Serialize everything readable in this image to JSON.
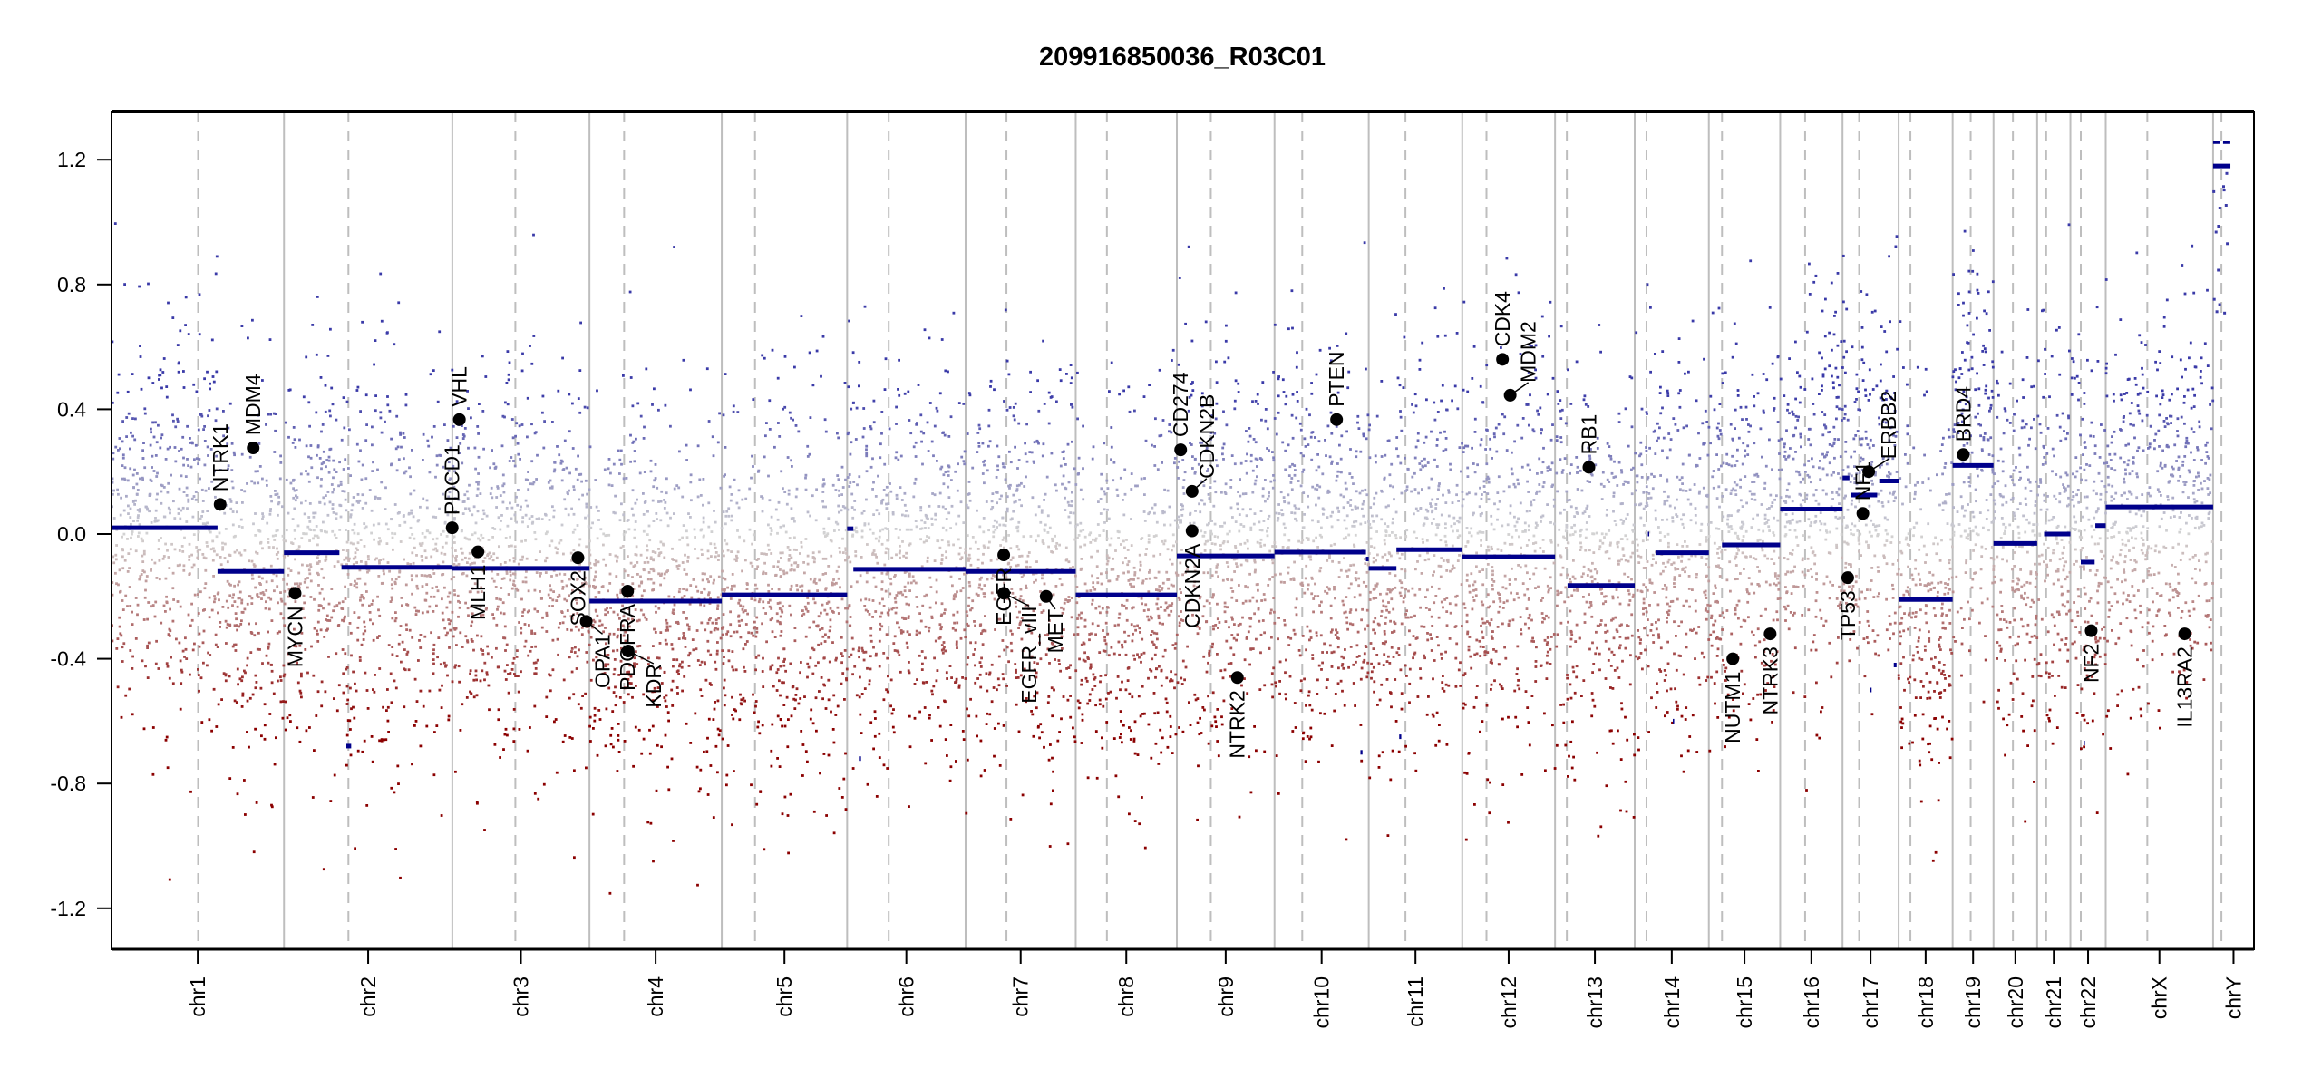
{
  "chart_data": {
    "type": "scatter",
    "title": "209916850036_R03C01",
    "xlabel": "",
    "ylabel": "",
    "ylim": [
      -1.34,
      1.355
    ],
    "yticks": [
      -1.2,
      -0.8,
      -0.4,
      0.0,
      0.4,
      0.8,
      1.2
    ],
    "ytick_labels": [
      "-1.2",
      "-0.8",
      "-0.4",
      "0.0",
      "0.4",
      "0.8",
      "1.2"
    ],
    "grid": false,
    "colors": {
      "gain": "#00008b",
      "loss": "#8b0000",
      "neutral": "#d3d3d3",
      "segment": "#00008b",
      "gene": "#000000",
      "chrom_line": "#bebebe"
    },
    "chromosomes": [
      {
        "name": "chr1",
        "length_mb": 249,
        "centromere_mb": 125
      },
      {
        "name": "chr2",
        "length_mb": 243,
        "centromere_mb": 93
      },
      {
        "name": "chr3",
        "length_mb": 198,
        "centromere_mb": 91
      },
      {
        "name": "chr4",
        "length_mb": 191,
        "centromere_mb": 50
      },
      {
        "name": "chr5",
        "length_mb": 181,
        "centromere_mb": 48
      },
      {
        "name": "chr6",
        "length_mb": 171,
        "centromere_mb": 60
      },
      {
        "name": "chr7",
        "length_mb": 159,
        "centromere_mb": 59
      },
      {
        "name": "chr8",
        "length_mb": 146,
        "centromere_mb": 45
      },
      {
        "name": "chr9",
        "length_mb": 141,
        "centromere_mb": 49
      },
      {
        "name": "chr10",
        "length_mb": 136,
        "centromere_mb": 40
      },
      {
        "name": "chr11",
        "length_mb": 135,
        "centromere_mb": 53
      },
      {
        "name": "chr12",
        "length_mb": 134,
        "centromere_mb": 35
      },
      {
        "name": "chr13",
        "length_mb": 115,
        "centromere_mb": 17
      },
      {
        "name": "chr14",
        "length_mb": 107,
        "centromere_mb": 17
      },
      {
        "name": "chr15",
        "length_mb": 103,
        "centromere_mb": 19
      },
      {
        "name": "chr16",
        "length_mb": 90,
        "centromere_mb": 36
      },
      {
        "name": "chr17",
        "length_mb": 81,
        "centromere_mb": 24
      },
      {
        "name": "chr18",
        "length_mb": 78,
        "centromere_mb": 17
      },
      {
        "name": "chr19",
        "length_mb": 59,
        "centromere_mb": 26
      },
      {
        "name": "chr20",
        "length_mb": 63,
        "centromere_mb": 28
      },
      {
        "name": "chr21",
        "length_mb": 48,
        "centromere_mb": 13
      },
      {
        "name": "chr22",
        "length_mb": 51,
        "centromere_mb": 15
      },
      {
        "name": "chrX",
        "length_mb": 155,
        "centromere_mb": 60
      },
      {
        "name": "chrY",
        "length_mb": 59,
        "centromere_mb": 12
      }
    ],
    "segments": [
      {
        "chrom": "chr1",
        "start": 0,
        "end": 153,
        "value": 0.02
      },
      {
        "chrom": "chr1",
        "start": 153,
        "end": 249,
        "value": -0.12
      },
      {
        "chrom": "chr2",
        "start": 0,
        "end": 80,
        "value": -0.06
      },
      {
        "chrom": "chr2",
        "start": 90,
        "end": 97,
        "value": -0.68
      },
      {
        "chrom": "chr2",
        "start": 83,
        "end": 243,
        "value": -0.107
      },
      {
        "chrom": "chr3",
        "start": 0,
        "end": 198,
        "value": -0.11
      },
      {
        "chrom": "chr4",
        "start": 0,
        "end": 191,
        "value": -0.215
      },
      {
        "chrom": "chr5",
        "start": 0,
        "end": 181,
        "value": -0.195
      },
      {
        "chrom": "chr6",
        "start": 0,
        "end": 9,
        "value": 0.017
      },
      {
        "chrom": "chr6",
        "start": 17,
        "end": 20,
        "value": -0.72
      },
      {
        "chrom": "chr6",
        "start": 9,
        "end": 171,
        "value": -0.113
      },
      {
        "chrom": "chr7",
        "start": 0,
        "end": 159,
        "value": -0.12
      },
      {
        "chrom": "chr8",
        "start": 0,
        "end": 146,
        "value": -0.195
      },
      {
        "chrom": "chr9",
        "start": 0,
        "end": 141,
        "value": -0.07
      },
      {
        "chrom": "chr10",
        "start": 0,
        "end": 132,
        "value": -0.058
      },
      {
        "chrom": "chr10",
        "start": 124,
        "end": 127,
        "value": -0.7
      },
      {
        "chrom": "chr10",
        "start": 132,
        "end": 136,
        "value": -0.08
      },
      {
        "chrom": "chr11",
        "start": 0,
        "end": 40,
        "value": -0.11
      },
      {
        "chrom": "chr11",
        "start": 44,
        "end": 47,
        "value": -0.65
      },
      {
        "chrom": "chr11",
        "start": 40,
        "end": 135,
        "value": -0.05
      },
      {
        "chrom": "chr12",
        "start": 0,
        "end": 134,
        "value": -0.073
      },
      {
        "chrom": "chr13",
        "start": 18,
        "end": 115,
        "value": -0.165
      },
      {
        "chrom": "chr14",
        "start": 19,
        "end": 21,
        "value": 0.0
      },
      {
        "chrom": "chr14",
        "start": 55,
        "end": 57,
        "value": -0.6
      },
      {
        "chrom": "chr14",
        "start": 30,
        "end": 107,
        "value": -0.06
      },
      {
        "chrom": "chr15",
        "start": 19,
        "end": 103,
        "value": -0.035
      },
      {
        "chrom": "chr16",
        "start": 0,
        "end": 90,
        "value": 0.08
      },
      {
        "chrom": "chr17",
        "start": 0,
        "end": 10,
        "value": 0.18
      },
      {
        "chrom": "chr17",
        "start": 12,
        "end": 50,
        "value": 0.125
      },
      {
        "chrom": "chr17",
        "start": 53,
        "end": 81,
        "value": 0.17
      },
      {
        "chrom": "chr17",
        "start": 39,
        "end": 42,
        "value": -0.5
      },
      {
        "chrom": "chr17",
        "start": 74,
        "end": 78,
        "value": -0.42
      },
      {
        "chrom": "chr18",
        "start": 0,
        "end": 78,
        "value": -0.21
      },
      {
        "chrom": "chr19",
        "start": 0,
        "end": 59,
        "value": 0.22
      },
      {
        "chrom": "chr20",
        "start": 0,
        "end": 63,
        "value": -0.03
      },
      {
        "chrom": "chr21",
        "start": 10,
        "end": 48,
        "value": 0.0
      },
      {
        "chrom": "chr22",
        "start": 15,
        "end": 35,
        "value": -0.09
      },
      {
        "chrom": "chr22",
        "start": 19,
        "end": 21,
        "value": -0.67
      },
      {
        "chrom": "chr22",
        "start": 36,
        "end": 51,
        "value": 0.027
      },
      {
        "chrom": "chrX",
        "start": 0,
        "end": 155,
        "value": 0.087
      },
      {
        "chrom": "chrY",
        "start": 0,
        "end": 25,
        "value": 1.18
      },
      {
        "chrom": "chrY",
        "start": 0,
        "end": 25,
        "value": 1.255
      }
    ],
    "genes": [
      {
        "name": "NTRK1",
        "chrom": "chr1",
        "pos": 156.8,
        "value": 0.095
      },
      {
        "name": "MDM4",
        "chrom": "chr1",
        "pos": 204.5,
        "value": 0.276
      },
      {
        "name": "MYCN",
        "chrom": "chr2",
        "pos": 16,
        "value": -0.19
      },
      {
        "name": "PDCD1",
        "chrom": "chr2",
        "pos": 242.8,
        "value": 0.02
      },
      {
        "name": "VHL",
        "chrom": "chr3",
        "pos": 10.2,
        "value": 0.367
      },
      {
        "name": "MLH1",
        "chrom": "chr3",
        "pos": 37,
        "value": -0.057
      },
      {
        "name": "SOX2",
        "chrom": "chr3",
        "pos": 181.4,
        "value": -0.076
      },
      {
        "name": "OPA1",
        "chrom": "chr3",
        "pos": 193.3,
        "value": -0.28
      },
      {
        "name": "PDGFRA",
        "chrom": "chr4",
        "pos": 55.1,
        "value": -0.183
      },
      {
        "name": "KDR",
        "chrom": "chr4",
        "pos": 55.9,
        "value": -0.375
      },
      {
        "name": "EGFR",
        "chrom": "chr7",
        "pos": 55.1,
        "value": -0.067
      },
      {
        "name": "EGFR_vIII",
        "chrom": "chr7",
        "pos": 55.2,
        "value": -0.19
      },
      {
        "name": "MET",
        "chrom": "chr7",
        "pos": 116.3,
        "value": -0.2
      },
      {
        "name": "CD274",
        "chrom": "chr9",
        "pos": 5.5,
        "value": 0.27
      },
      {
        "name": "CDKN2B",
        "chrom": "chr9",
        "pos": 22.0,
        "value": 0.137
      },
      {
        "name": "CDKN2A",
        "chrom": "chr9",
        "pos": 21.97,
        "value": 0.01
      },
      {
        "name": "NTRK2",
        "chrom": "chr9",
        "pos": 87.3,
        "value": -0.46
      },
      {
        "name": "PTEN",
        "chrom": "chr10",
        "pos": 89.6,
        "value": 0.367
      },
      {
        "name": "CDK4",
        "chrom": "chr12",
        "pos": 58.1,
        "value": 0.56
      },
      {
        "name": "MDM2",
        "chrom": "chr12",
        "pos": 69.2,
        "value": 0.445
      },
      {
        "name": "RB1",
        "chrom": "chr13",
        "pos": 48.9,
        "value": 0.214
      },
      {
        "name": "NUTM1",
        "chrom": "chr15",
        "pos": 34.6,
        "value": -0.4
      },
      {
        "name": "NTRK3",
        "chrom": "chr15",
        "pos": 88.5,
        "value": -0.32
      },
      {
        "name": "TP53",
        "chrom": "chr17",
        "pos": 7.5,
        "value": -0.14
      },
      {
        "name": "NF1",
        "chrom": "chr17",
        "pos": 29.4,
        "value": 0.066
      },
      {
        "name": "ERBB2",
        "chrom": "chr17",
        "pos": 37.8,
        "value": 0.2
      },
      {
        "name": "BRD4",
        "chrom": "chr19",
        "pos": 15.3,
        "value": 0.255
      },
      {
        "name": "NF2",
        "chrom": "chr22",
        "pos": 30,
        "value": -0.31
      },
      {
        "name": "IL13RA2",
        "chrom": "chrX",
        "pos": 114,
        "value": -0.32
      }
    ]
  }
}
